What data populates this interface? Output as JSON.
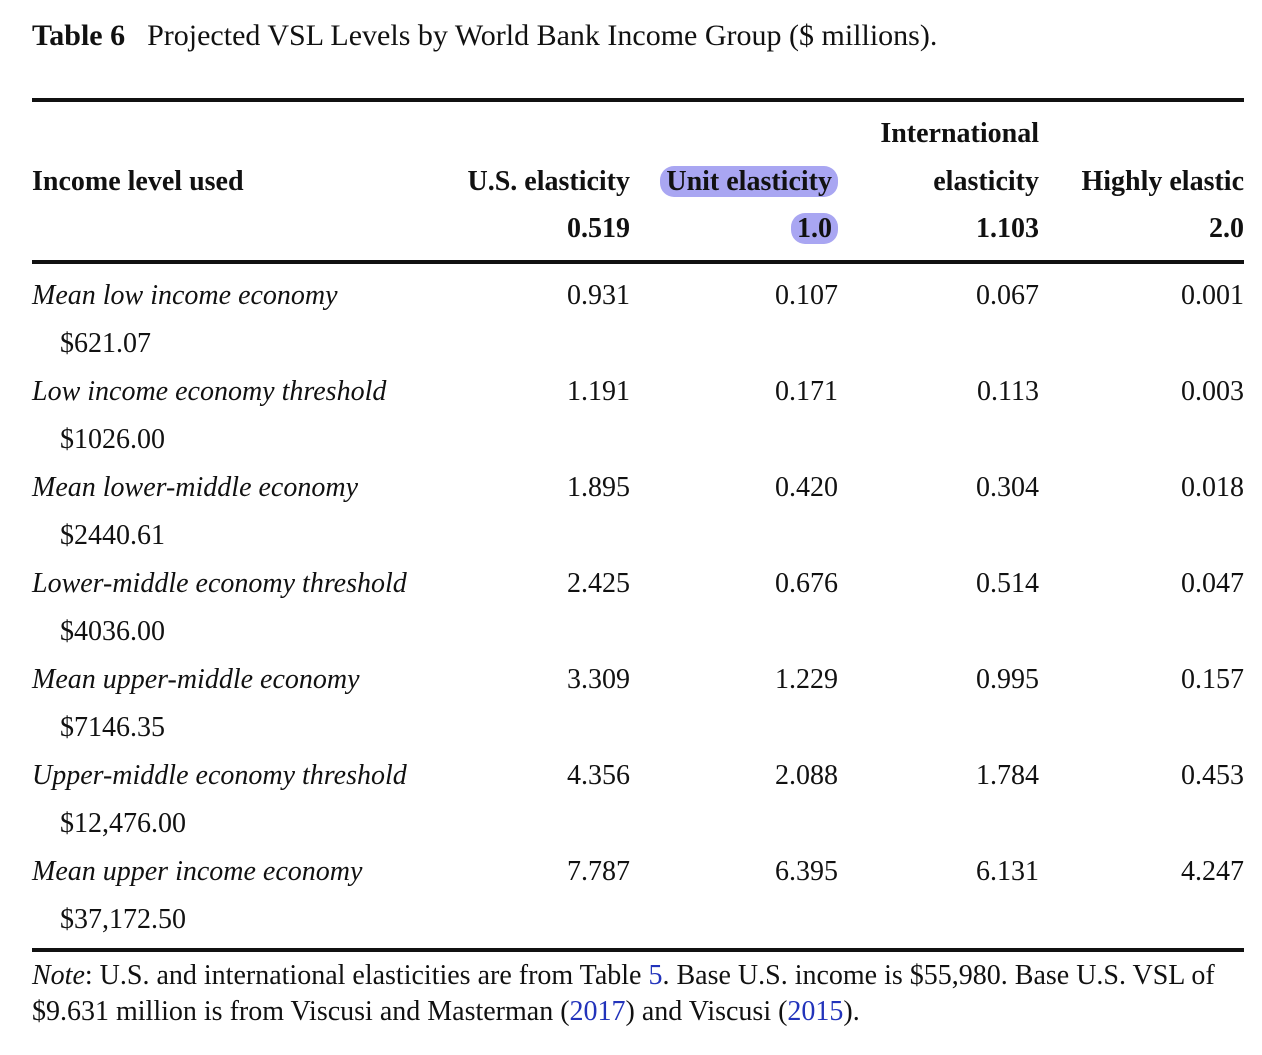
{
  "caption": {
    "label": "Table 6",
    "title": "Projected VSL Levels by World Bank Income Group ($ millions)."
  },
  "header": {
    "income_level": "Income level used",
    "col1": {
      "name": "U.S. elasticity",
      "value": "0.519"
    },
    "col2": {
      "name": "Unit elasticity",
      "value": "1.0"
    },
    "col3": {
      "name_line1": "International",
      "name_line2": "elasticity",
      "value": "1.103"
    },
    "col4": {
      "name": "Highly elastic",
      "value": "2.0"
    }
  },
  "highlight_color": "#a9a6f2",
  "rows": [
    {
      "name": "Mean low income economy",
      "income": "$621.07",
      "v1": "0.931",
      "v2": "0.107",
      "v3": "0.067",
      "v4": "0.001"
    },
    {
      "name": "Low income economy threshold",
      "income": "$1026.00",
      "v1": "1.191",
      "v2": "0.171",
      "v3": "0.113",
      "v4": "0.003"
    },
    {
      "name": "Mean lower-middle economy",
      "income": "$2440.61",
      "v1": "1.895",
      "v2": "0.420",
      "v3": "0.304",
      "v4": "0.018"
    },
    {
      "name": "Lower-middle economy threshold",
      "income": "$4036.00",
      "v1": "2.425",
      "v2": "0.676",
      "v3": "0.514",
      "v4": "0.047"
    },
    {
      "name": "Mean upper-middle economy",
      "income": "$7146.35",
      "v1": "3.309",
      "v2": "1.229",
      "v3": "0.995",
      "v4": "0.157"
    },
    {
      "name": "Upper-middle economy threshold",
      "income": "$12,476.00",
      "v1": "4.356",
      "v2": "2.088",
      "v3": "1.784",
      "v4": "0.453"
    },
    {
      "name": "Mean upper income economy",
      "income": "$37,172.50",
      "v1": "7.787",
      "v2": "6.395",
      "v3": "6.131",
      "v4": "4.247"
    }
  ],
  "note": {
    "label": "Note",
    "part1": ": U.S. and international elasticities are from Table ",
    "table_ref": "5",
    "part2": ". Base U.S. income is $55,980. Base U.S. VSL of $9.631 million is from Viscusi and Masterman (",
    "ref1": "2017",
    "part3": ") and Viscusi (",
    "ref2": "2015",
    "part4": ")."
  }
}
